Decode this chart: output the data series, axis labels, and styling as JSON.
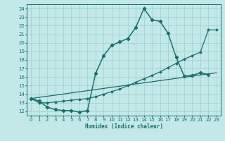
{
  "bg_color": "#c2e8e8",
  "line_color": "#1a6e6e",
  "grid_color": "#9ecece",
  "xlabel": "Humidex (Indice chaleur)",
  "xlim": [
    -0.5,
    23.5
  ],
  "ylim": [
    11.5,
    24.5
  ],
  "yticks": [
    12,
    13,
    14,
    15,
    16,
    17,
    18,
    19,
    20,
    21,
    22,
    23,
    24
  ],
  "xticks": [
    0,
    1,
    2,
    3,
    4,
    5,
    6,
    7,
    8,
    9,
    10,
    11,
    12,
    13,
    14,
    15,
    16,
    17,
    18,
    19,
    20,
    21,
    22,
    23
  ],
  "curve1_x": [
    0,
    1,
    2,
    3,
    4,
    5,
    6,
    7,
    8,
    9,
    10,
    11,
    12,
    13,
    14,
    15,
    16,
    17,
    18,
    19,
    20,
    21,
    22
  ],
  "curve1_y": [
    13.5,
    13.2,
    12.5,
    12.2,
    12.1,
    12.1,
    11.9,
    12.1,
    16.4,
    18.5,
    19.7,
    20.1,
    20.5,
    21.8,
    24.0,
    22.7,
    22.5,
    21.1,
    18.3,
    16.1,
    16.2,
    16.5,
    16.3
  ],
  "curve2_x": [
    0,
    1,
    2,
    3,
    4,
    5,
    6,
    7,
    8,
    9,
    10,
    11,
    12,
    13,
    14,
    15,
    16,
    17,
    18,
    19,
    20,
    21,
    22,
    23
  ],
  "curve2_y": [
    13.5,
    13.0,
    13.0,
    13.1,
    13.2,
    13.3,
    13.4,
    13.5,
    13.7,
    14.0,
    14.3,
    14.6,
    15.0,
    15.4,
    15.8,
    16.2,
    16.6,
    17.1,
    17.6,
    18.1,
    18.5,
    18.9,
    21.5,
    21.5
  ],
  "line3_x": [
    0,
    23
  ],
  "line3_y": [
    13.5,
    16.5
  ]
}
